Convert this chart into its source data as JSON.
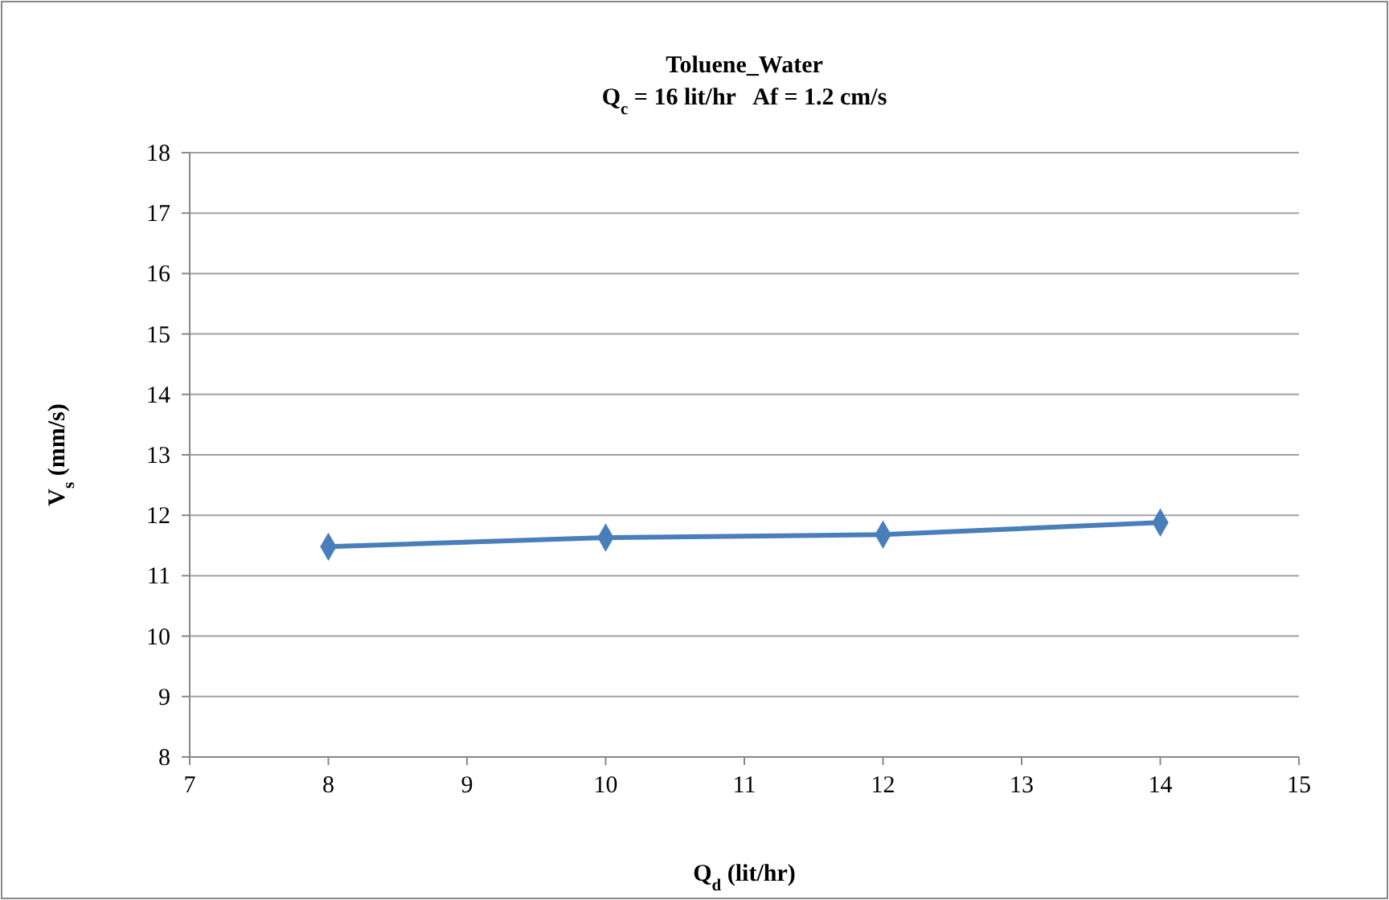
{
  "chart_data": {
    "type": "line",
    "title": "Toluene_Water",
    "subtitle": "Q$_{c}$ = 16 lit/hr   Af = 1.2 cm/s",
    "xlabel": "Q$_{d}$ (lit/hr)",
    "ylabel": "V$_{s}$ (mm/s)",
    "x": [
      8,
      10,
      12,
      14
    ],
    "series": [
      {
        "color": "#4a7ebb",
        "values": [
          11.48,
          11.63,
          11.68,
          11.88
        ]
      }
    ],
    "xlim": [
      7,
      15
    ],
    "xticks": [
      7,
      8,
      9,
      10,
      11,
      12,
      13,
      14,
      15
    ],
    "ylim": [
      8,
      18
    ],
    "yticks": [
      8,
      9,
      10,
      11,
      12,
      13,
      14,
      15,
      16,
      17,
      18
    ],
    "grid": "y",
    "marker": "diamond",
    "line_style": "solid"
  }
}
